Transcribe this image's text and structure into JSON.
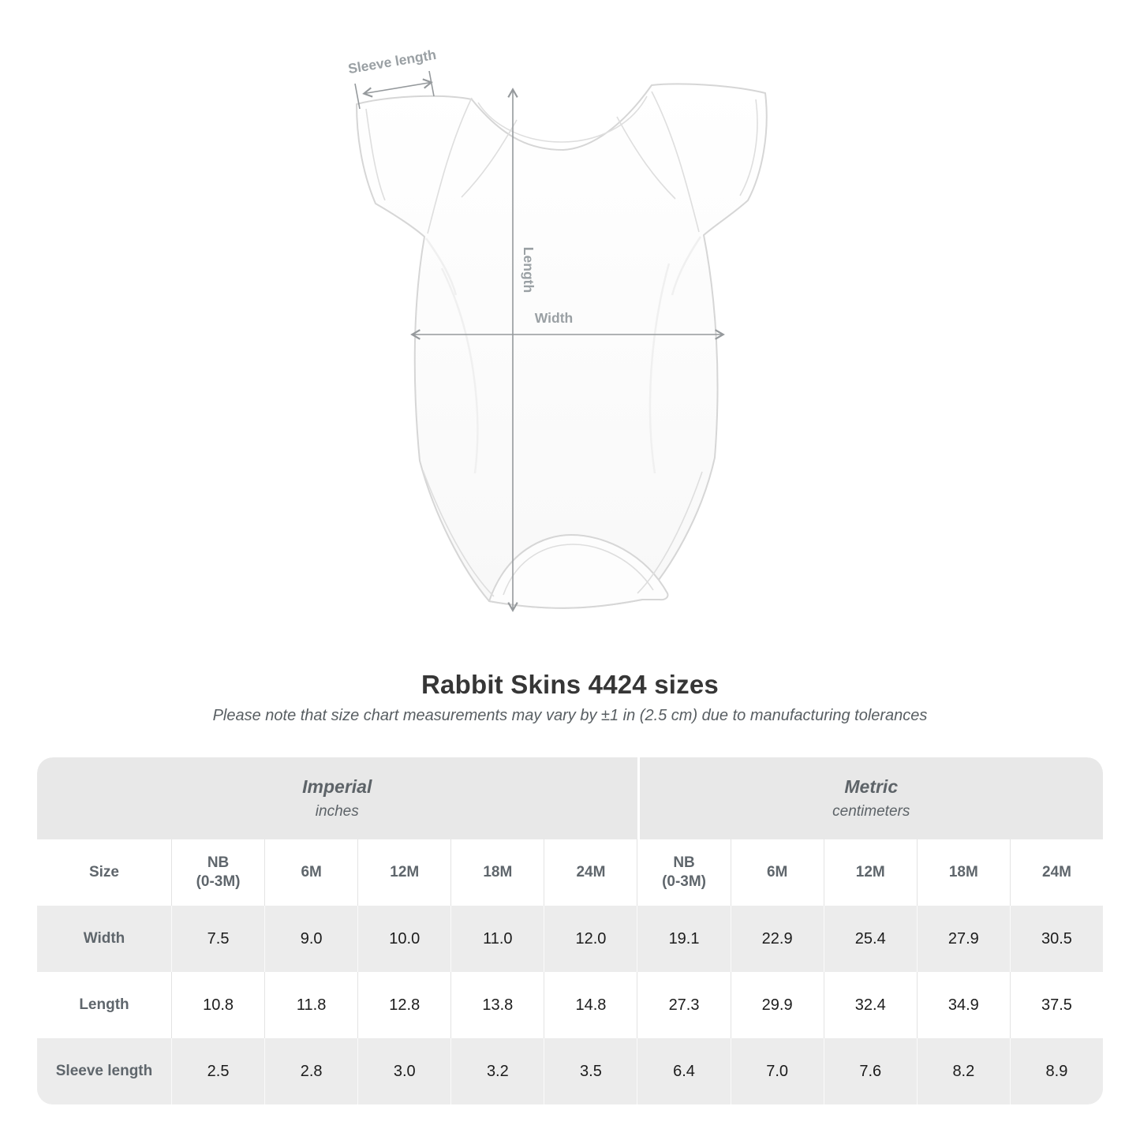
{
  "diagram": {
    "labels": {
      "sleeve_length": "Sleeve length",
      "length": "Length",
      "width": "Width"
    }
  },
  "title": "Rabbit Skins 4424 sizes",
  "subtitle": "Please note that size chart measurements may vary by ±1 in (2.5 cm) due to manufacturing tolerances",
  "table": {
    "size_label": "Size",
    "unit_groups": [
      {
        "name": "Imperial",
        "unit": "inches"
      },
      {
        "name": "Metric",
        "unit": "centimeters"
      }
    ],
    "sizes": [
      [
        "NB",
        "(0-3M)"
      ],
      [
        "6M"
      ],
      [
        "12M"
      ],
      [
        "18M"
      ],
      [
        "24M"
      ]
    ],
    "rows": [
      {
        "label": "Width",
        "imperial": [
          "7.5",
          "9.0",
          "10.0",
          "11.0",
          "12.0"
        ],
        "metric": [
          "19.1",
          "22.9",
          "25.4",
          "27.9",
          "30.5"
        ]
      },
      {
        "label": "Length",
        "imperial": [
          "10.8",
          "11.8",
          "12.8",
          "13.8",
          "14.8"
        ],
        "metric": [
          "27.3",
          "29.9",
          "32.4",
          "34.9",
          "37.5"
        ]
      },
      {
        "label": "Sleeve length",
        "imperial": [
          "2.5",
          "2.8",
          "3.0",
          "3.2",
          "3.5"
        ],
        "metric": [
          "6.4",
          "7.0",
          "7.6",
          "8.2",
          "8.9"
        ]
      }
    ]
  },
  "chart_data": {
    "type": "table",
    "title": "Rabbit Skins 4424 sizes",
    "columns": [
      "Size",
      "NB (0-3M) in",
      "6M in",
      "12M in",
      "18M in",
      "24M in",
      "NB (0-3M) cm",
      "6M cm",
      "12M cm",
      "18M cm",
      "24M cm"
    ],
    "rows": [
      [
        "Width",
        7.5,
        9.0,
        10.0,
        11.0,
        12.0,
        19.1,
        22.9,
        25.4,
        27.9,
        30.5
      ],
      [
        "Length",
        10.8,
        11.8,
        12.8,
        13.8,
        14.8,
        27.3,
        29.9,
        32.4,
        34.9,
        37.5
      ],
      [
        "Sleeve length",
        2.5,
        2.8,
        3.0,
        3.2,
        3.5,
        6.4,
        7.0,
        7.6,
        8.2,
        8.9
      ]
    ]
  },
  "colors": {
    "band_background": "#e8e8e8",
    "row_stripe": "#ececec",
    "header_text": "#5f666c",
    "value_text": "#1c1c1c",
    "title_text": "#363636",
    "annotation_gray": "#9aa0a4",
    "garment_outline": "#d6d6d6"
  }
}
